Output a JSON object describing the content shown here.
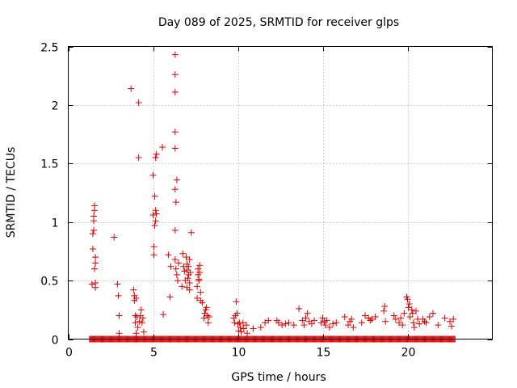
{
  "chart_data": {
    "type": "scatter",
    "title": "Day 089 of 2025, SRMTID for receiver glps",
    "xlabel": "GPS time / hours",
    "ylabel": "SRMTID / TECUs",
    "xlim": [
      0,
      25
    ],
    "ylim": [
      0,
      2.5
    ],
    "xticks": [
      0,
      5,
      10,
      15,
      20
    ],
    "xtick_labels": [
      "0",
      "5",
      "10",
      "15",
      "20"
    ],
    "yticks": [
      0,
      0.5,
      1,
      1.5,
      2,
      2.5
    ],
    "ytick_labels": [
      "0",
      "0.5",
      "1",
      "1.5",
      "2",
      "2.5"
    ],
    "grid": true,
    "marker": "+",
    "color": "#e00000",
    "baseline": {
      "y": 0,
      "x_start": 1.25,
      "x_end": 22.8,
      "step": 0.05
    },
    "series": [
      {
        "name": "SRMTID",
        "points": [
          [
            1.4,
            0.47
          ],
          [
            1.45,
            0.77
          ],
          [
            1.45,
            0.9
          ],
          [
            1.5,
            0.93
          ],
          [
            1.5,
            1.01
          ],
          [
            1.5,
            1.05
          ],
          [
            1.55,
            1.1
          ],
          [
            1.55,
            1.14
          ],
          [
            1.55,
            0.6
          ],
          [
            1.6,
            0.65
          ],
          [
            1.6,
            0.7
          ],
          [
            1.6,
            0.48
          ],
          [
            1.6,
            0.44
          ],
          [
            2.7,
            0.87
          ],
          [
            2.9,
            0.47
          ],
          [
            2.95,
            0.37
          ],
          [
            3.0,
            0.2
          ],
          [
            3.0,
            0.05
          ],
          [
            3.7,
            2.14
          ],
          [
            3.85,
            0.42
          ],
          [
            3.9,
            0.37
          ],
          [
            3.9,
            0.33
          ],
          [
            3.95,
            0.2
          ],
          [
            3.95,
            0.14
          ],
          [
            4.0,
            0.05
          ],
          [
            4.0,
            0.35
          ],
          [
            4.05,
            0.19
          ],
          [
            4.1,
            0.1
          ],
          [
            4.15,
            2.02
          ],
          [
            4.15,
            1.55
          ],
          [
            4.2,
            0.15
          ],
          [
            4.25,
            0.2
          ],
          [
            4.3,
            0.25
          ],
          [
            4.35,
            0.14
          ],
          [
            4.4,
            0.18
          ],
          [
            4.45,
            0.06
          ],
          [
            5.0,
            1.4
          ],
          [
            5.0,
            1.06
          ],
          [
            5.05,
            0.79
          ],
          [
            5.05,
            0.72
          ],
          [
            5.1,
            1.22
          ],
          [
            5.1,
            0.97
          ],
          [
            5.15,
            1.01
          ],
          [
            5.15,
            1.1
          ],
          [
            5.15,
            1.55
          ],
          [
            5.2,
            1.58
          ],
          [
            5.2,
            1.07
          ],
          [
            5.55,
            1.64
          ],
          [
            5.6,
            0.21
          ],
          [
            5.9,
            0.72
          ],
          [
            6.0,
            0.36
          ],
          [
            6.05,
            0.62
          ],
          [
            6.3,
            2.43
          ],
          [
            6.3,
            2.26
          ],
          [
            6.3,
            2.11
          ],
          [
            6.3,
            1.77
          ],
          [
            6.3,
            1.63
          ],
          [
            6.3,
            1.28
          ],
          [
            6.35,
            1.17
          ],
          [
            6.4,
            1.36
          ],
          [
            6.3,
            0.93
          ],
          [
            6.3,
            0.68
          ],
          [
            6.35,
            0.6
          ],
          [
            6.4,
            0.55
          ],
          [
            6.45,
            0.5
          ],
          [
            6.5,
            0.65
          ],
          [
            6.7,
            0.45
          ],
          [
            6.75,
            0.73
          ],
          [
            6.8,
            0.62
          ],
          [
            6.85,
            0.58
          ],
          [
            6.9,
            0.5
          ],
          [
            6.95,
            0.7
          ],
          [
            7.0,
            0.64
          ],
          [
            7.0,
            0.59
          ],
          [
            7.0,
            0.44
          ],
          [
            7.05,
            0.52
          ],
          [
            7.1,
            0.55
          ],
          [
            7.1,
            0.62
          ],
          [
            7.15,
            0.68
          ],
          [
            7.15,
            0.48
          ],
          [
            7.15,
            0.42
          ],
          [
            7.2,
            0.57
          ],
          [
            7.25,
            0.91
          ],
          [
            7.6,
            0.35
          ],
          [
            7.6,
            0.45
          ],
          [
            7.65,
            0.6
          ],
          [
            7.65,
            0.55
          ],
          [
            7.7,
            0.51
          ],
          [
            7.7,
            0.5
          ],
          [
            7.75,
            0.63
          ],
          [
            7.75,
            0.57
          ],
          [
            7.8,
            0.4
          ],
          [
            7.8,
            0.33
          ],
          [
            7.9,
            0.31
          ],
          [
            8.0,
            0.18
          ],
          [
            8.05,
            0.22
          ],
          [
            8.1,
            0.25
          ],
          [
            8.15,
            0.27
          ],
          [
            8.2,
            0.2
          ],
          [
            8.25,
            0.14
          ],
          [
            8.3,
            0.19
          ],
          [
            9.75,
            0.18
          ],
          [
            9.8,
            0.14
          ],
          [
            9.85,
            0.2
          ],
          [
            9.9,
            0.32
          ],
          [
            9.95,
            0.22
          ],
          [
            10.0,
            0.13
          ],
          [
            10.05,
            0.07
          ],
          [
            10.1,
            0.14
          ],
          [
            10.15,
            0.1
          ],
          [
            10.2,
            0.06
          ],
          [
            10.3,
            0.14
          ],
          [
            10.35,
            0.09
          ],
          [
            10.5,
            0.12
          ],
          [
            10.55,
            0.05
          ],
          [
            10.9,
            0.09
          ],
          [
            11.35,
            0.1
          ],
          [
            11.6,
            0.14
          ],
          [
            11.8,
            0.16
          ],
          [
            12.3,
            0.16
          ],
          [
            12.4,
            0.14
          ],
          [
            12.6,
            0.12
          ],
          [
            12.8,
            0.13
          ],
          [
            13.0,
            0.14
          ],
          [
            13.3,
            0.12
          ],
          [
            13.6,
            0.26
          ],
          [
            13.8,
            0.16
          ],
          [
            13.9,
            0.12
          ],
          [
            14.0,
            0.18
          ],
          [
            14.1,
            0.22
          ],
          [
            14.2,
            0.15
          ],
          [
            14.35,
            0.13
          ],
          [
            14.5,
            0.16
          ],
          [
            14.9,
            0.14
          ],
          [
            15.0,
            0.18
          ],
          [
            15.1,
            0.15
          ],
          [
            15.15,
            0.12
          ],
          [
            15.25,
            0.16
          ],
          [
            15.4,
            0.1
          ],
          [
            15.6,
            0.13
          ],
          [
            15.8,
            0.14
          ],
          [
            16.3,
            0.19
          ],
          [
            16.5,
            0.12
          ],
          [
            16.6,
            0.15
          ],
          [
            16.7,
            0.17
          ],
          [
            16.8,
            0.1
          ],
          [
            17.3,
            0.14
          ],
          [
            17.5,
            0.2
          ],
          [
            17.7,
            0.18
          ],
          [
            17.8,
            0.16
          ],
          [
            17.9,
            0.17
          ],
          [
            18.1,
            0.19
          ],
          [
            18.6,
            0.24
          ],
          [
            18.65,
            0.28
          ],
          [
            18.7,
            0.15
          ],
          [
            19.2,
            0.2
          ],
          [
            19.3,
            0.17
          ],
          [
            19.5,
            0.14
          ],
          [
            19.6,
            0.18
          ],
          [
            19.7,
            0.12
          ],
          [
            19.8,
            0.22
          ],
          [
            19.95,
            0.36
          ],
          [
            20.0,
            0.34
          ],
          [
            20.05,
            0.27
          ],
          [
            20.1,
            0.3
          ],
          [
            20.15,
            0.19
          ],
          [
            20.25,
            0.25
          ],
          [
            20.3,
            0.22
          ],
          [
            20.35,
            0.14
          ],
          [
            20.4,
            0.1
          ],
          [
            20.5,
            0.24
          ],
          [
            20.6,
            0.17
          ],
          [
            20.7,
            0.13
          ],
          [
            20.9,
            0.17
          ],
          [
            21.0,
            0.15
          ],
          [
            21.1,
            0.14
          ],
          [
            21.3,
            0.19
          ],
          [
            21.5,
            0.22
          ],
          [
            21.8,
            0.12
          ],
          [
            22.2,
            0.18
          ],
          [
            22.5,
            0.15
          ],
          [
            22.6,
            0.11
          ],
          [
            22.7,
            0.17
          ]
        ]
      }
    ]
  }
}
